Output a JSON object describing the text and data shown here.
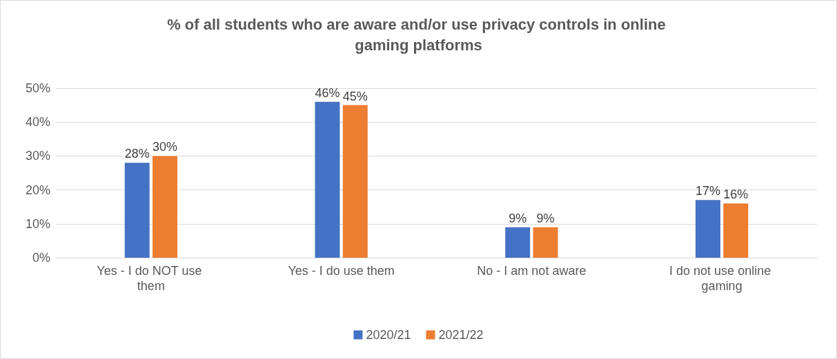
{
  "chart_data": {
    "type": "bar",
    "title": "% of all students who are aware and/or use privacy controls in online gaming platforms",
    "categories": [
      "Yes - I do NOT use them",
      "Yes - I do use them",
      "No - I am not aware",
      "I do not use online gaming"
    ],
    "series": [
      {
        "name": "2020/21",
        "color": "#4472c4",
        "values": [
          28,
          46,
          9,
          17
        ],
        "value_labels": [
          "28%",
          "46%",
          "9%",
          "17%"
        ]
      },
      {
        "name": "2021/22",
        "color": "#ed7d31",
        "values": [
          30,
          45,
          9,
          16
        ],
        "value_labels": [
          "30%",
          "45%",
          "9%",
          "16%"
        ]
      }
    ],
    "ylim": [
      0,
      50
    ],
    "yticks": [
      {
        "value": 0,
        "label": "0%"
      },
      {
        "value": 10,
        "label": "10%"
      },
      {
        "value": 20,
        "label": "20%"
      },
      {
        "value": 30,
        "label": "30%"
      },
      {
        "value": 40,
        "label": "40%"
      },
      {
        "value": 50,
        "label": "50%"
      }
    ],
    "grid": "y",
    "legend": "bottom"
  }
}
